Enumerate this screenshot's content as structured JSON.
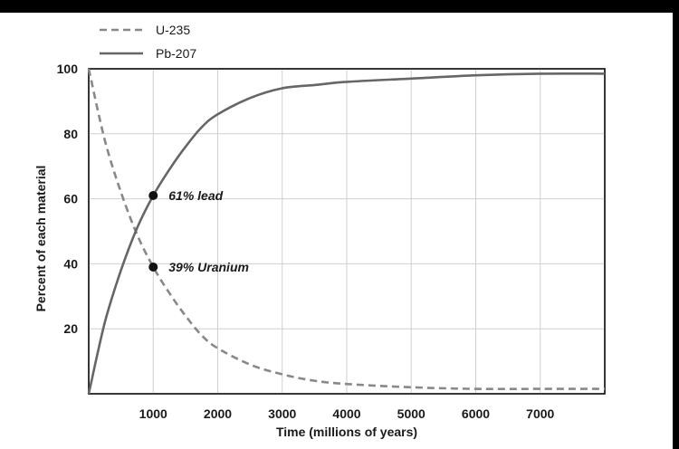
{
  "chart_data": {
    "type": "line",
    "xlabel": "Time (millions of years)",
    "ylabel": "Percent of each material",
    "xlim": [
      0,
      8000
    ],
    "ylim": [
      0,
      100
    ],
    "xticks": [
      1000,
      2000,
      3000,
      4000,
      5000,
      6000,
      7000
    ],
    "xtick_labels": [
      "1000",
      "2000",
      "3000",
      "4000",
      "5000",
      "6000",
      "7000"
    ],
    "yticks": [
      20,
      40,
      60,
      80,
      100
    ],
    "ytick_labels": [
      "20",
      "40",
      "60",
      "80",
      "100"
    ],
    "grid": true,
    "legend_position": "top-left",
    "series": [
      {
        "name": "U-235",
        "style": "dashed",
        "color": "#888888",
        "x": [
          0,
          250,
          500,
          750,
          1000,
          1250,
          1500,
          1750,
          2000,
          2500,
          3000,
          3500,
          4000,
          5000,
          6000,
          7000,
          8000
        ],
        "y": [
          100,
          78,
          62,
          49,
          39,
          31,
          24,
          18,
          14,
          9,
          6,
          4,
          3,
          2,
          1.5,
          1.5,
          1.5
        ]
      },
      {
        "name": "Pb-207",
        "style": "solid",
        "color": "#666666",
        "x": [
          0,
          250,
          500,
          750,
          1000,
          1250,
          1500,
          1750,
          2000,
          2500,
          3000,
          3500,
          4000,
          5000,
          6000,
          7000,
          8000
        ],
        "y": [
          0,
          22,
          38,
          51,
          61,
          69,
          76,
          82,
          86,
          91,
          94,
          95,
          96,
          97,
          98,
          98.5,
          98.5
        ]
      }
    ],
    "points": [
      {
        "x": 1000,
        "y": 61,
        "label": "61% lead"
      },
      {
        "x": 1000,
        "y": 39,
        "label": "39% Uranium"
      }
    ]
  }
}
